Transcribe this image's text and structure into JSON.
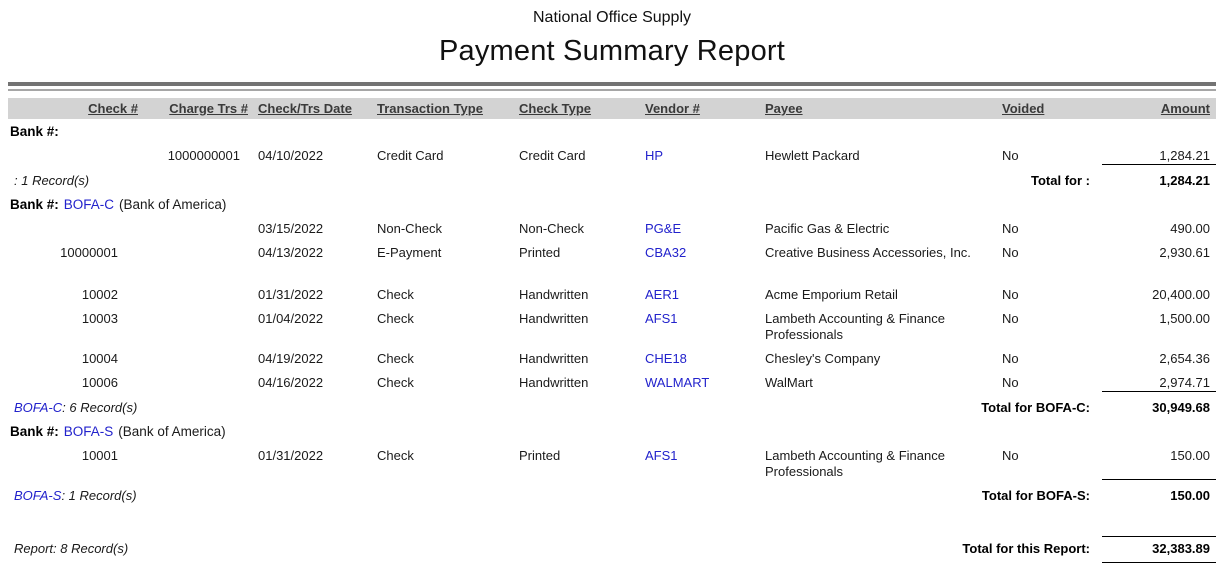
{
  "header": {
    "company": "National Office Supply",
    "title": "Payment Summary Report"
  },
  "colors": {
    "link": "#2222cc",
    "header_band": "#d3d3d3"
  },
  "columns": {
    "check": "Check #",
    "charge": "Charge Trs #",
    "date": "Check/Trs Date",
    "trans_type": "Transaction Type",
    "check_type": "Check Type",
    "vendor": "Vendor #",
    "payee": "Payee",
    "voided": "Voided",
    "amount": "Amount"
  },
  "groups": [
    {
      "bank_label": "Bank #:",
      "bank_code": "",
      "bank_name": "",
      "rows": [
        {
          "check": "",
          "charge": "1000000001",
          "date": "04/10/2022",
          "trans_type": "Credit Card",
          "check_type": "Credit Card",
          "vendor": "HP",
          "payee": "Hewlett Packard",
          "voided": "No",
          "amount": "1,284.21"
        }
      ],
      "records_code": "",
      "records_text": ": 1 Record(s)",
      "total_label": "Total for :",
      "total_amount": "1,284.21"
    },
    {
      "bank_label": "Bank #:",
      "bank_code": "BOFA-C",
      "bank_name": "(Bank of America)",
      "rows": [
        {
          "check": "",
          "charge": "",
          "date": "03/15/2022",
          "trans_type": "Non-Check",
          "check_type": "Non-Check",
          "vendor": "PG&E",
          "payee": "Pacific Gas & Electric",
          "voided": "No",
          "amount": "490.00"
        },
        {
          "check": "10000001",
          "charge": "",
          "date": "04/13/2022",
          "trans_type": "E-Payment",
          "check_type": "Printed",
          "vendor": "CBA32",
          "payee": "Creative Business Accessories, Inc.",
          "voided": "No",
          "amount": "2,930.61"
        },
        {
          "check": "10002",
          "charge": "",
          "date": "01/31/2022",
          "trans_type": "Check",
          "check_type": "Handwritten",
          "vendor": "AER1",
          "payee": "Acme Emporium Retail",
          "voided": "No",
          "amount": "20,400.00"
        },
        {
          "check": "10003",
          "charge": "",
          "date": "01/04/2022",
          "trans_type": "Check",
          "check_type": "Handwritten",
          "vendor": "AFS1",
          "payee": "Lambeth Accounting & Finance Professionals",
          "voided": "No",
          "amount": "1,500.00"
        },
        {
          "check": "10004",
          "charge": "",
          "date": "04/19/2022",
          "trans_type": "Check",
          "check_type": "Handwritten",
          "vendor": "CHE18",
          "payee": "Chesley's Company",
          "voided": "No",
          "amount": "2,654.36"
        },
        {
          "check": "10006",
          "charge": "",
          "date": "04/16/2022",
          "trans_type": "Check",
          "check_type": "Handwritten",
          "vendor": "WALMART",
          "payee": "WalMart",
          "voided": "No",
          "amount": "2,974.71"
        }
      ],
      "records_code": "BOFA-C",
      "records_text": ": 6 Record(s)",
      "total_label": "Total for BOFA-C:",
      "total_amount": "30,949.68"
    },
    {
      "bank_label": "Bank #:",
      "bank_code": "BOFA-S",
      "bank_name": "(Bank of America)",
      "rows": [
        {
          "check": "10001",
          "charge": "",
          "date": "01/31/2022",
          "trans_type": "Check",
          "check_type": "Printed",
          "vendor": "AFS1",
          "payee": "Lambeth Accounting & Finance Professionals",
          "voided": "No",
          "amount": "150.00"
        }
      ],
      "records_code": "BOFA-S",
      "records_text": ": 1 Record(s)",
      "total_label": "Total for BOFA-S:",
      "total_amount": "150.00"
    }
  ],
  "report_footer": {
    "records_text": "Report: 8 Record(s)",
    "total_label": "Total for this Report:",
    "total_amount": "32,383.89"
  }
}
